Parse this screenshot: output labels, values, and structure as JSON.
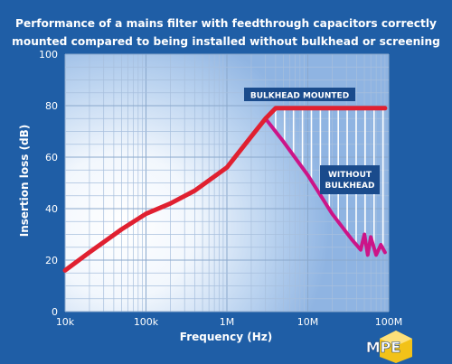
{
  "title_lines": [
    "Performance of a mains filter with feedthrough capacitors correctly",
    "mounted compared to being installed without bulkhead or screening"
  ],
  "logo_text": "MPE",
  "chart_data": {
    "type": "line",
    "title": "Performance of a mains filter with feedthrough capacitors correctly mounted compared to being installed without bulkhead or screening",
    "xlabel": "Frequency (Hz)",
    "ylabel": "Insertion loss (dB)",
    "xscale": "log",
    "xlim": [
      10000,
      100000000
    ],
    "ylim": [
      0,
      100
    ],
    "xticks": [
      {
        "value": 10000,
        "label": "10k"
      },
      {
        "value": 100000,
        "label": "100k"
      },
      {
        "value": 1000000,
        "label": "1M"
      },
      {
        "value": 10000000,
        "label": "10M"
      },
      {
        "value": 100000000,
        "label": "100M"
      }
    ],
    "yticks": [
      0,
      20,
      40,
      60,
      80,
      100
    ],
    "grid": true,
    "series": [
      {
        "name": "BULKHEAD MOUNTED",
        "color": "#e02030",
        "x": [
          10000,
          20000,
          50000,
          100000,
          200000,
          400000,
          1000000,
          2000000,
          3000000,
          4000000,
          10000000,
          50000000,
          90000000
        ],
        "y": [
          16,
          23,
          32,
          38,
          42,
          47,
          56,
          68,
          75,
          79,
          79,
          79,
          79
        ]
      },
      {
        "name": "WITHOUT BULKHEAD",
        "color": "#cc1488",
        "x": [
          3000000,
          5000000,
          10000000,
          20000000,
          35000000,
          45000000,
          50000000,
          55000000,
          60000000,
          70000000,
          80000000,
          90000000
        ],
        "y": [
          75,
          66,
          53,
          38,
          28,
          24,
          30,
          22,
          29,
          22,
          26,
          23
        ]
      }
    ],
    "annotations": [
      {
        "text": "BULKHEAD MOUNTED",
        "x": 3000000,
        "y": 84
      },
      {
        "text": "WITHOUT BULKHEAD",
        "x": 30000000,
        "y": 50
      }
    ]
  }
}
